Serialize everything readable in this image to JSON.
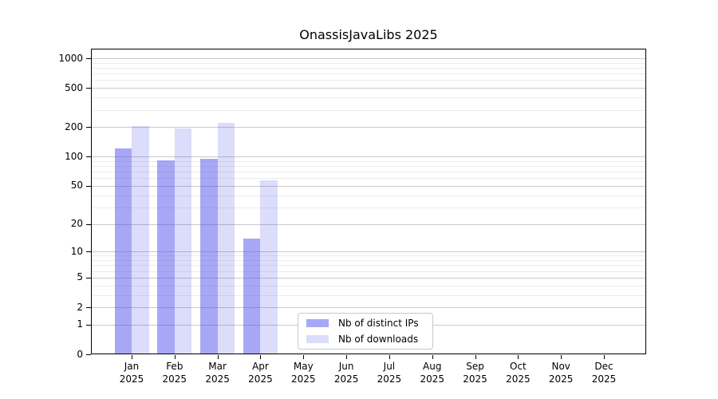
{
  "chart_data": {
    "type": "bar",
    "title": "OnassisJavaLibs 2025",
    "categories": [
      "Jan",
      "Feb",
      "Mar",
      "Apr",
      "May",
      "Jun",
      "Jul",
      "Aug",
      "Sep",
      "Oct",
      "Nov",
      "Dec"
    ],
    "category_year": "2025",
    "series": [
      {
        "name": "Nb of distinct IPs",
        "color": "rgba(80,82,235,0.50)",
        "values": [
          120,
          92,
          94,
          14,
          null,
          null,
          null,
          null,
          null,
          null,
          null,
          null
        ]
      },
      {
        "name": "Nb of downloads",
        "color": "rgba(80,82,235,0.20)",
        "values": [
          206,
          193,
          222,
          57,
          null,
          null,
          null,
          null,
          null,
          null,
          null,
          null
        ]
      }
    ],
    "yaxis": {
      "scale": "adjusted-log (position proportional to log10(1+value))",
      "major_ticks": [
        0,
        1,
        2,
        5,
        10,
        20,
        50,
        100,
        200,
        500,
        1000
      ],
      "minor_gridlines": [
        3,
        4,
        6,
        7,
        8,
        9,
        30,
        40,
        60,
        70,
        80,
        90,
        300,
        400,
        600,
        700,
        800,
        900
      ],
      "range": [
        0,
        1250
      ]
    },
    "xaxis": {
      "tick_label_lines": 2
    },
    "legend": {
      "position": "bottom-center-inside",
      "entries": [
        "Nb of distinct IPs",
        "Nb of downloads"
      ]
    },
    "grid": "horizontal-only"
  },
  "colors": {
    "background": "#ffffff",
    "bar_base": "#5052eb",
    "distinct_ips_bar_solid": "#a7a8f5",
    "downloads_bar_solid": "#dcddfb",
    "axis": "#000000",
    "major_gridline": "#c9c9c9",
    "minor_gridline": "#ececec",
    "legend_border": "#c8c8c8",
    "text": "#000000"
  }
}
